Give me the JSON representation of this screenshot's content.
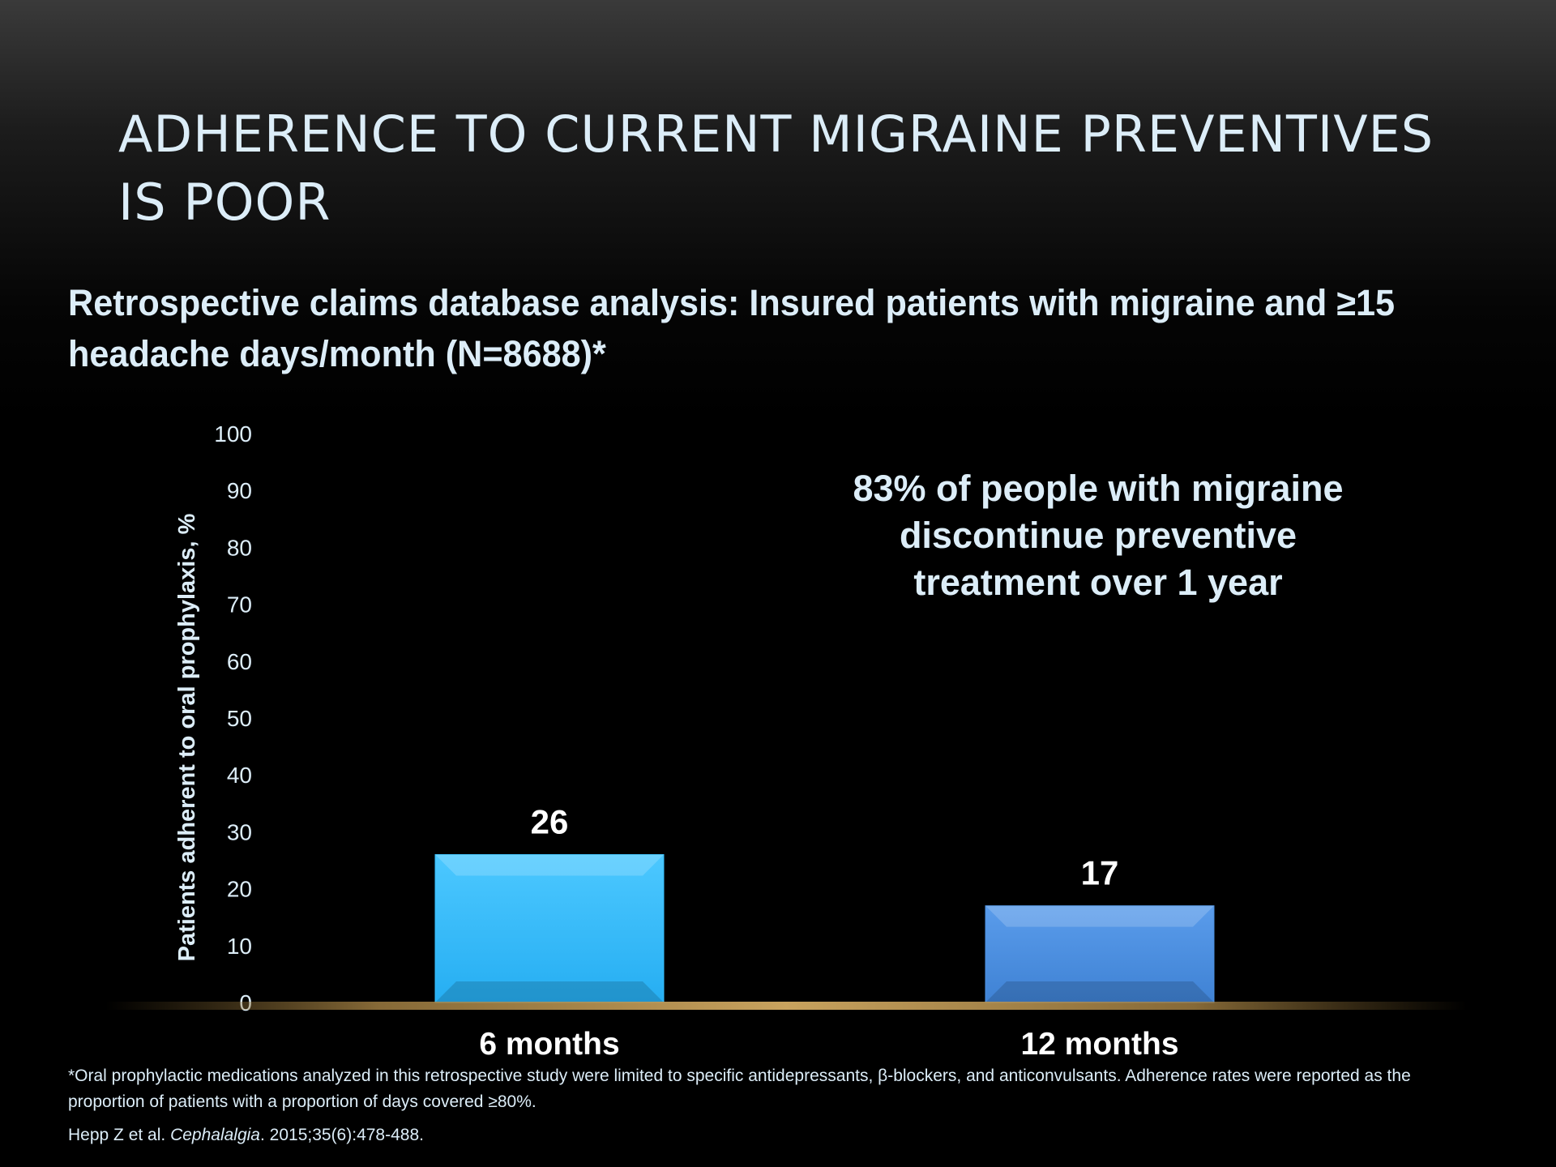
{
  "slide": {
    "title": "ADHERENCE TO CURRENT MIGRAINE PREVENTIVES IS POOR",
    "subtitle": "Retrospective claims database analysis: Insured patients with migraine and ≥15 headache days/month (N=8688)*",
    "callout": "83% of people with migraine discontinue preventive treatment over 1 year",
    "footnote": "*Oral prophylactic medications analyzed in this retrospective study were limited to specific antidepressants, β-blockers, and anticonvulsants. Adherence rates were reported as the proportion of patients with a proportion of days covered ≥80%.",
    "citation": {
      "authors": "Hepp Z et al. ",
      "journal": "Cephalalgia",
      "details": ". 2015;35(6):478-488."
    }
  },
  "chart_data": {
    "type": "bar",
    "categories": [
      "6 months",
      "12 months"
    ],
    "values": [
      26,
      17
    ],
    "data_labels": [
      "26",
      "17"
    ],
    "ylabel": "Patients adherent to oral prophylaxis, %",
    "ylim": [
      0,
      100
    ],
    "yticks": [
      0,
      10,
      20,
      30,
      40,
      50,
      60,
      70,
      80,
      90,
      100
    ],
    "grid": false,
    "legend": "none",
    "colors": [
      "#33bdfb",
      "#4a8fe0"
    ]
  }
}
